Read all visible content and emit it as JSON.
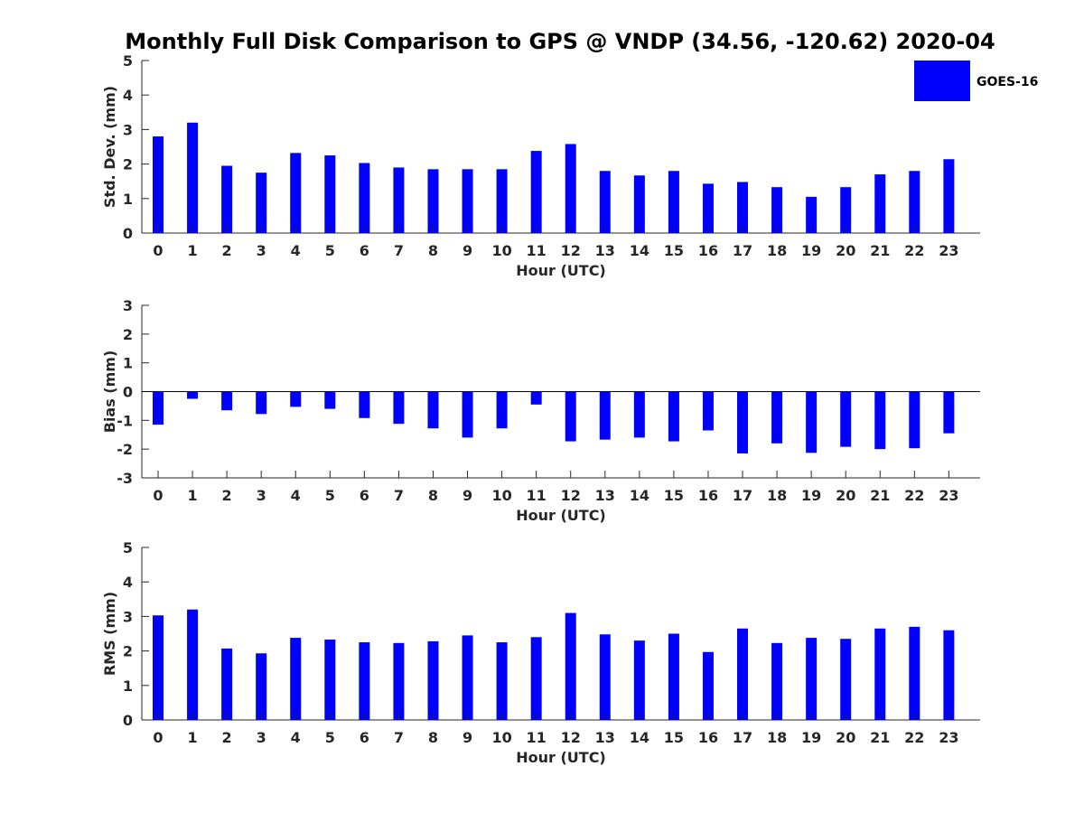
{
  "figure": {
    "title": "Monthly Full Disk Comparison to GPS @ VNDP (34.56, -120.62) 2020-04",
    "legend": {
      "label": "GOES-16",
      "color": "#0000ff"
    }
  },
  "chart_data": [
    {
      "type": "bar",
      "series": [
        {
          "name": "GOES-16",
          "values": [
            2.8,
            3.2,
            1.95,
            1.75,
            2.32,
            2.25,
            2.03,
            1.9,
            1.85,
            1.85,
            1.85,
            2.38,
            2.58,
            1.8,
            1.67,
            1.8,
            1.43,
            1.48,
            1.33,
            1.05,
            1.33,
            1.7,
            1.8,
            2.14
          ]
        }
      ],
      "categories": [
        "0",
        "1",
        "2",
        "3",
        "4",
        "5",
        "6",
        "7",
        "8",
        "9",
        "10",
        "11",
        "12",
        "13",
        "14",
        "15",
        "16",
        "17",
        "18",
        "19",
        "20",
        "21",
        "22",
        "23"
      ],
      "xlabel": "Hour (UTC)",
      "ylabel": "Std. Dev. (mm)",
      "ylim": [
        0,
        5
      ],
      "yticks": [
        "0",
        "1",
        "2",
        "3",
        "4",
        "5"
      ],
      "color": "#0000ff"
    },
    {
      "type": "bar",
      "series": [
        {
          "name": "GOES-16",
          "values": [
            -1.15,
            -0.25,
            -0.65,
            -0.78,
            -0.53,
            -0.6,
            -0.92,
            -1.12,
            -1.28,
            -1.6,
            -1.28,
            -0.45,
            -1.73,
            -1.67,
            -1.6,
            -1.73,
            -1.35,
            -2.15,
            -1.8,
            -2.13,
            -1.92,
            -2.0,
            -1.97,
            -1.45
          ]
        }
      ],
      "categories": [
        "0",
        "1",
        "2",
        "3",
        "4",
        "5",
        "6",
        "7",
        "8",
        "9",
        "10",
        "11",
        "12",
        "13",
        "14",
        "15",
        "16",
        "17",
        "18",
        "19",
        "20",
        "21",
        "22",
        "23"
      ],
      "xlabel": "Hour (UTC)",
      "ylabel": "Bias (mm)",
      "ylim": [
        -3,
        3
      ],
      "yticks": [
        "-3",
        "-2",
        "-1",
        "0",
        "1",
        "2",
        "3"
      ],
      "color": "#0000ff"
    },
    {
      "type": "bar",
      "series": [
        {
          "name": "GOES-16",
          "values": [
            3.03,
            3.2,
            2.07,
            1.93,
            2.38,
            2.33,
            2.25,
            2.23,
            2.28,
            2.45,
            2.25,
            2.4,
            3.1,
            2.48,
            2.3,
            2.5,
            1.97,
            2.65,
            2.23,
            2.38,
            2.35,
            2.65,
            2.7,
            2.6
          ]
        }
      ],
      "categories": [
        "0",
        "1",
        "2",
        "3",
        "4",
        "5",
        "6",
        "7",
        "8",
        "9",
        "10",
        "11",
        "12",
        "13",
        "14",
        "15",
        "16",
        "17",
        "18",
        "19",
        "20",
        "21",
        "22",
        "23"
      ],
      "xlabel": "Hour (UTC)",
      "ylabel": "RMS (mm)",
      "ylim": [
        0,
        5
      ],
      "yticks": [
        "0",
        "1",
        "2",
        "3",
        "4",
        "5"
      ],
      "color": "#0000ff"
    }
  ]
}
